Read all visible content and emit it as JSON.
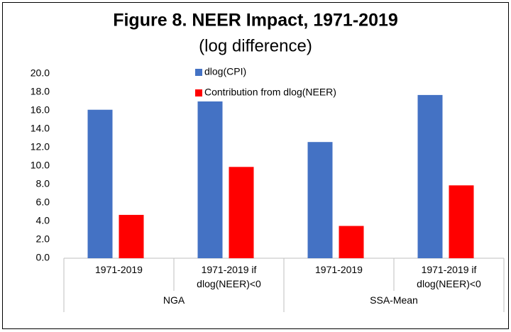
{
  "chart_data": {
    "type": "bar",
    "title": "Figure 8. NEER Impact, 1971-2019",
    "subtitle": "(log difference)",
    "categories": [
      "1971-2019",
      "1971-2019 if dlog(NEER)<0",
      "1971-2019",
      "1971-2019 if dlog(NEER)<0"
    ],
    "groups": [
      "NGA",
      "SSA-Mean"
    ],
    "series": [
      {
        "name": "dlog(CPI)",
        "color": "#4472c4",
        "values": [
          16.1,
          17.0,
          12.6,
          17.7
        ]
      },
      {
        "name": "Contribution from dlog(NEER)",
        "color": "#ff0000",
        "values": [
          4.7,
          9.9,
          3.5,
          7.9
        ]
      }
    ],
    "ylim": [
      0,
      20
    ],
    "yticks": [
      {
        "value": 0,
        "label": "0.0"
      },
      {
        "value": 2,
        "label": "2.0"
      },
      {
        "value": 4,
        "label": "4.0"
      },
      {
        "value": 6,
        "label": "6.0"
      },
      {
        "value": 8,
        "label": "8.0"
      },
      {
        "value": 10,
        "label": "10.0"
      },
      {
        "value": 12,
        "label": "12.0"
      },
      {
        "value": 14,
        "label": "14.0"
      },
      {
        "value": 16,
        "label": "16.0"
      },
      {
        "value": 18,
        "label": "18.0"
      },
      {
        "value": 20,
        "label": "20.0"
      }
    ],
    "grid": false,
    "legend": "top",
    "title_color": "#2e86c1"
  }
}
